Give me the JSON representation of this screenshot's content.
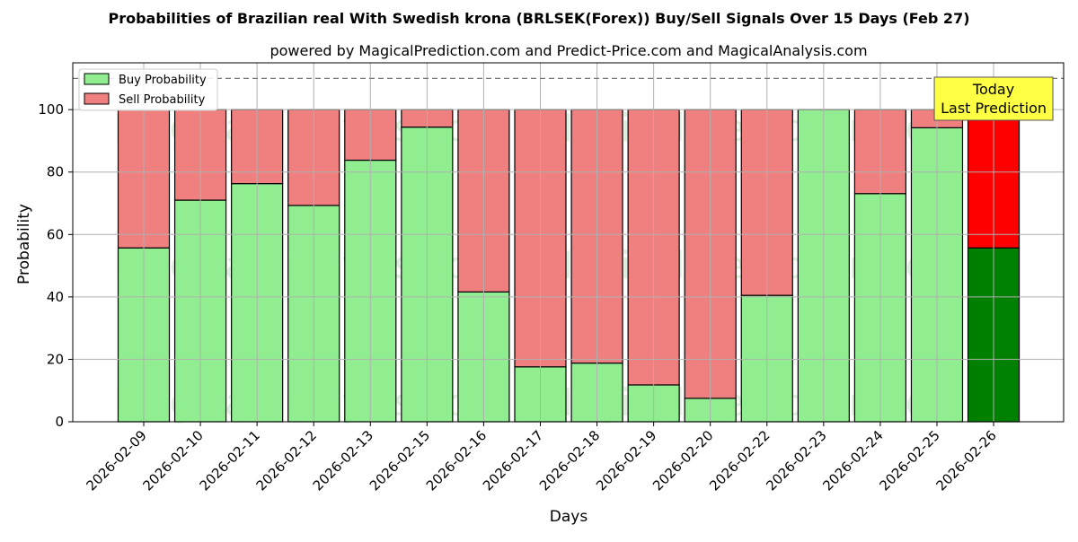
{
  "chart_data": {
    "type": "bar",
    "title": "Probabilities of Brazilian real With Swedish krona (BRLSEK(Forex)) Buy/Sell Signals Over 15 Days (Feb 27)",
    "subtitle": "powered by MagicalPrediction.com and Predict-Price.com and MagicalAnalysis.com",
    "xlabel": "Days",
    "ylabel": "Probability",
    "ylim": [
      0,
      115
    ],
    "yticks": [
      0,
      20,
      40,
      60,
      80,
      100
    ],
    "reference_line": 110,
    "grid": true,
    "stacked": true,
    "legend_position": "top-left",
    "categories": [
      "2026-02-09",
      "2026-02-10",
      "2026-02-11",
      "2026-02-12",
      "2026-02-13",
      "2026-02-15",
      "2026-02-16",
      "2026-02-17",
      "2026-02-18",
      "2026-02-19",
      "2026-02-20",
      "2026-02-22",
      "2026-02-23",
      "2026-02-24",
      "2026-02-25",
      "2026-02-26"
    ],
    "series": [
      {
        "name": "Buy Probability",
        "color": "#90ee90",
        "highlight_color": "#008000",
        "values": [
          55.7,
          71.0,
          76.3,
          69.3,
          83.8,
          94.4,
          41.6,
          17.6,
          18.8,
          11.8,
          7.5,
          40.5,
          100.0,
          73.1,
          94.2,
          55.7
        ]
      },
      {
        "name": "Sell Probability",
        "color": "#f08080",
        "highlight_color": "#ff0000",
        "values": [
          44.3,
          29.0,
          23.7,
          30.7,
          16.2,
          5.6,
          58.4,
          82.4,
          81.2,
          88.2,
          92.5,
          59.5,
          0.0,
          26.9,
          5.8,
          44.3
        ]
      }
    ],
    "highlight_index": 15,
    "annotation": {
      "lines": [
        "Today",
        "Last Prediction"
      ],
      "color": "#ffff44"
    },
    "watermarks": [
      "MagicalAnalysis.com",
      "MagicalPrediction.com"
    ]
  }
}
